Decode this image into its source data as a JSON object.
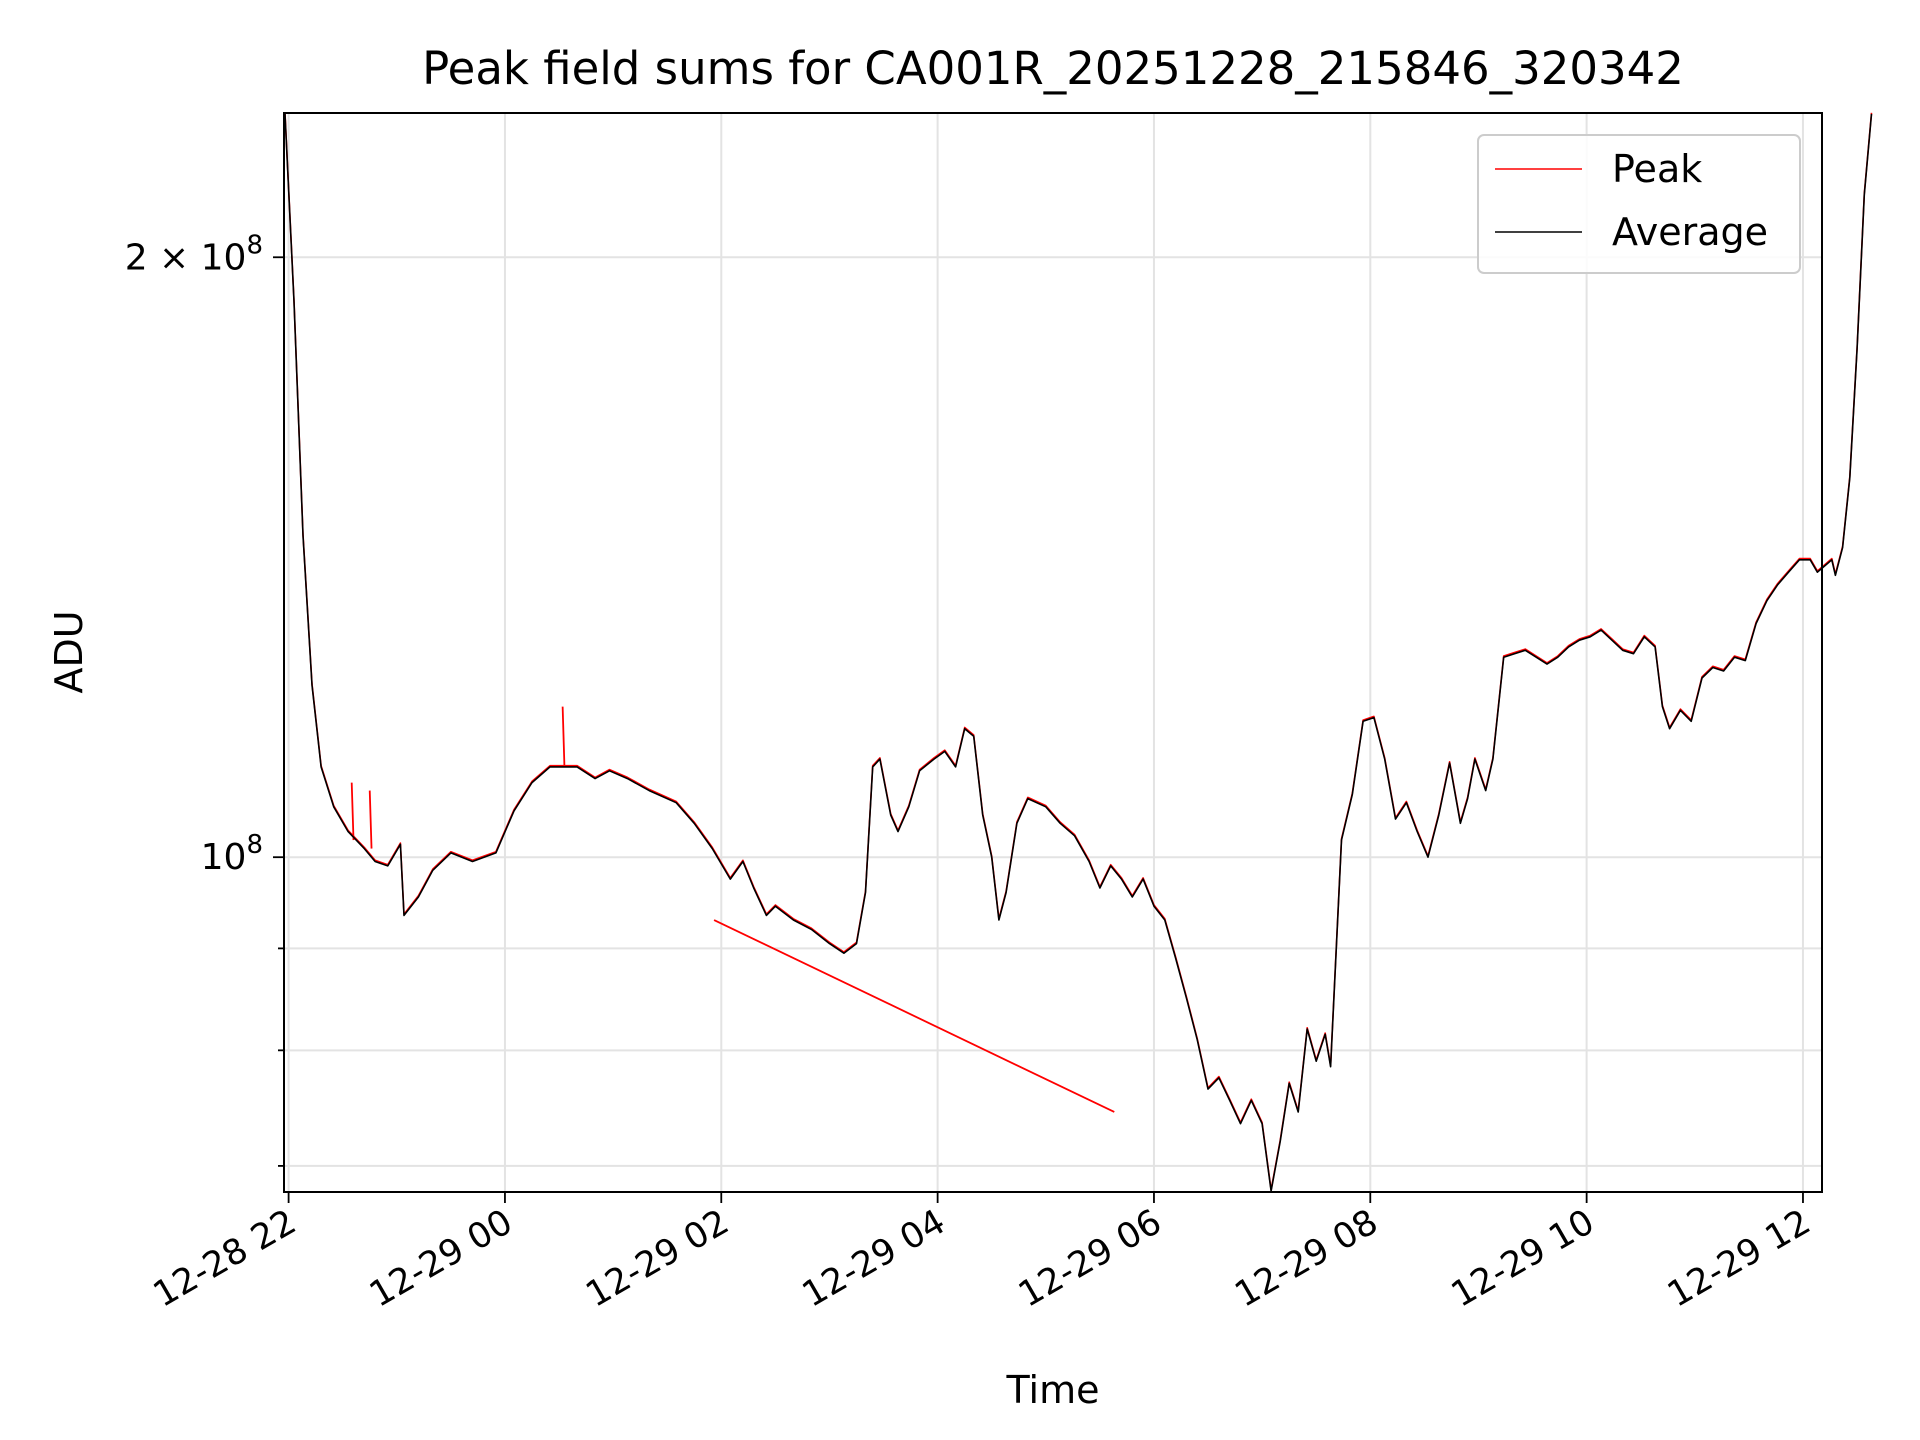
{
  "chart_data": {
    "type": "line",
    "title": "Peak field sums for CA001R_20251228_215846_320342",
    "xlabel": "Time",
    "ylabel": "ADU",
    "yscale": "log",
    "xlim": [
      "2025-12-28T21:58",
      "2025-12-29T12:10"
    ],
    "ylim": [
      68000000,
      236000000
    ],
    "grid": true,
    "legend_position": "top-right",
    "x_ticks": [
      {
        "t": "2025-12-28T22:00",
        "label": "12-28 22"
      },
      {
        "t": "2025-12-29T00:00",
        "label": "12-29 00"
      },
      {
        "t": "2025-12-29T02:00",
        "label": "12-29 02"
      },
      {
        "t": "2025-12-29T04:00",
        "label": "12-29 04"
      },
      {
        "t": "2025-12-29T06:00",
        "label": "12-29 06"
      },
      {
        "t": "2025-12-29T08:00",
        "label": "12-29 08"
      },
      {
        "t": "2025-12-29T10:00",
        "label": "12-29 10"
      },
      {
        "t": "2025-12-29T12:00",
        "label": "12-29 12"
      }
    ],
    "y_major_ticks": [
      {
        "value": 100000000,
        "label_base": "10",
        "label_exp": "8"
      },
      {
        "value": 200000000,
        "label_base": "2 × 10",
        "label_exp": "8"
      }
    ],
    "y_minor_ticks": [
      70000000,
      80000000,
      90000000
    ],
    "series": [
      {
        "name": "Peak",
        "color": "#ff0000",
        "points": [
          [
            "2025-12-28T22:35",
            "109000000"
          ],
          [
            "2025-12-28T22:36",
            "102000000"
          ],
          [
            "2025-12-28T22:45",
            "108000000"
          ],
          [
            "2025-12-28T22:46",
            "101000000"
          ],
          [
            "2025-12-29T00:32",
            "119000000"
          ],
          [
            "2025-12-29T00:33",
            "111000000"
          ],
          [
            "2025-12-29T01:56",
            "93000000"
          ],
          [
            "2025-12-29T05:38",
            "74500000"
          ]
        ]
      },
      {
        "name": "Average",
        "color": "#000000",
        "points": [
          [
            "2025-12-28T21:58",
            236000000
          ],
          [
            "2025-12-28T22:03",
            190000000
          ],
          [
            "2025-12-28T22:08",
            145000000
          ],
          [
            "2025-12-28T22:13",
            122000000
          ],
          [
            "2025-12-28T22:18",
            111000000
          ],
          [
            "2025-12-28T22:25",
            106000000
          ],
          [
            "2025-12-28T22:33",
            103000000
          ],
          [
            "2025-12-28T22:42",
            101000000
          ],
          [
            "2025-12-28T22:48",
            99500000
          ],
          [
            "2025-12-28T22:55",
            99000000
          ],
          [
            "2025-12-28T23:02",
            101500000
          ],
          [
            "2025-12-28T23:04",
            93500000
          ],
          [
            "2025-12-28T23:12",
            95500000
          ],
          [
            "2025-12-28T23:20",
            98500000
          ],
          [
            "2025-12-28T23:30",
            100500000
          ],
          [
            "2025-12-28T23:42",
            99500000
          ],
          [
            "2025-12-28T23:55",
            100500000
          ],
          [
            "2025-12-29T00:05",
            105500000
          ],
          [
            "2025-12-29T00:15",
            109000000
          ],
          [
            "2025-12-29T00:25",
            111000000
          ],
          [
            "2025-12-29T00:40",
            111000000
          ],
          [
            "2025-12-29T00:50",
            109500000
          ],
          [
            "2025-12-29T00:58",
            110500000
          ],
          [
            "2025-12-29T01:08",
            109500000
          ],
          [
            "2025-12-29T01:20",
            108000000
          ],
          [
            "2025-12-29T01:35",
            106500000
          ],
          [
            "2025-12-29T01:45",
            104000000
          ],
          [
            "2025-12-29T01:55",
            101000000
          ],
          [
            "2025-12-29T02:05",
            97500000
          ],
          [
            "2025-12-29T02:12",
            99500000
          ],
          [
            "2025-12-29T02:18",
            96500000
          ],
          [
            "2025-12-29T02:25",
            93500000
          ],
          [
            "2025-12-29T02:30",
            94500000
          ],
          [
            "2025-12-29T02:40",
            93000000
          ],
          [
            "2025-12-29T02:50",
            92000000
          ],
          [
            "2025-12-29T03:00",
            90500000
          ],
          [
            "2025-12-29T03:08",
            89500000
          ],
          [
            "2025-12-29T03:15",
            90500000
          ],
          [
            "2025-12-29T03:20",
            96000000
          ],
          [
            "2025-12-29T03:24",
            111000000
          ],
          [
            "2025-12-29T03:28",
            112000000
          ],
          [
            "2025-12-29T03:34",
            105000000
          ],
          [
            "2025-12-29T03:38",
            103000000
          ],
          [
            "2025-12-29T03:44",
            106000000
          ],
          [
            "2025-12-29T03:50",
            110500000
          ],
          [
            "2025-12-29T03:58",
            112000000
          ],
          [
            "2025-12-29T04:04",
            113000000
          ],
          [
            "2025-12-29T04:10",
            111000000
          ],
          [
            "2025-12-29T04:15",
            116000000
          ],
          [
            "2025-12-29T04:20",
            115000000
          ],
          [
            "2025-12-29T04:25",
            105000000
          ],
          [
            "2025-12-29T04:30",
            100000000
          ],
          [
            "2025-12-29T04:34",
            93000000
          ],
          [
            "2025-12-29T04:38",
            96000000
          ],
          [
            "2025-12-29T04:44",
            104000000
          ],
          [
            "2025-12-29T04:50",
            107000000
          ],
          [
            "2025-12-29T05:00",
            106000000
          ],
          [
            "2025-12-29T05:08",
            104000000
          ],
          [
            "2025-12-29T05:16",
            102500000
          ],
          [
            "2025-12-29T05:24",
            99500000
          ],
          [
            "2025-12-29T05:30",
            96500000
          ],
          [
            "2025-12-29T05:36",
            99000000
          ],
          [
            "2025-12-29T05:42",
            97500000
          ],
          [
            "2025-12-29T05:48",
            95500000
          ],
          [
            "2025-12-29T05:54",
            97500000
          ],
          [
            "2025-12-29T06:00",
            94500000
          ],
          [
            "2025-12-29T06:06",
            93000000
          ],
          [
            "2025-12-29T06:12",
            89000000
          ],
          [
            "2025-12-29T06:18",
            85000000
          ],
          [
            "2025-12-29T06:24",
            81000000
          ],
          [
            "2025-12-29T06:30",
            76500000
          ],
          [
            "2025-12-29T06:36",
            77500000
          ],
          [
            "2025-12-29T06:42",
            75500000
          ],
          [
            "2025-12-29T06:48",
            73500000
          ],
          [
            "2025-12-29T06:54",
            75500000
          ],
          [
            "2025-12-29T07:00",
            73500000
          ],
          [
            "2025-12-29T07:05",
            68000000
          ],
          [
            "2025-12-29T07:10",
            72000000
          ],
          [
            "2025-12-29T07:15",
            77000000
          ],
          [
            "2025-12-29T07:20",
            74500000
          ],
          [
            "2025-12-29T07:25",
            82000000
          ],
          [
            "2025-12-29T07:30",
            79000000
          ],
          [
            "2025-12-29T07:35",
            81500000
          ],
          [
            "2025-12-29T07:38",
            78500000
          ],
          [
            "2025-12-29T07:44",
            102000000
          ],
          [
            "2025-12-29T07:50",
            107500000
          ],
          [
            "2025-12-29T07:56",
            117000000
          ],
          [
            "2025-12-29T08:02",
            117500000
          ],
          [
            "2025-12-29T08:08",
            112000000
          ],
          [
            "2025-12-29T08:14",
            104500000
          ],
          [
            "2025-12-29T08:20",
            106500000
          ],
          [
            "2025-12-29T08:26",
            103000000
          ],
          [
            "2025-12-29T08:32",
            100000000
          ],
          [
            "2025-12-29T08:38",
            105000000
          ],
          [
            "2025-12-29T08:44",
            111500000
          ],
          [
            "2025-12-29T08:50",
            104000000
          ],
          [
            "2025-12-29T08:54",
            107000000
          ],
          [
            "2025-12-29T08:58",
            112000000
          ],
          [
            "2025-12-29T09:04",
            108000000
          ],
          [
            "2025-12-29T09:08",
            112000000
          ],
          [
            "2025-12-29T09:14",
            126000000
          ],
          [
            "2025-12-29T09:20",
            126500000
          ],
          [
            "2025-12-29T09:26",
            127000000
          ],
          [
            "2025-12-29T09:32",
            126000000
          ],
          [
            "2025-12-29T09:38",
            125000000
          ],
          [
            "2025-12-29T09:44",
            126000000
          ],
          [
            "2025-12-29T09:50",
            127500000
          ],
          [
            "2025-12-29T09:56",
            128500000
          ],
          [
            "2025-12-29T10:02",
            129000000
          ],
          [
            "2025-12-29T10:08",
            130000000
          ],
          [
            "2025-12-29T10:14",
            128500000
          ],
          [
            "2025-12-29T10:20",
            127000000
          ],
          [
            "2025-12-29T10:26",
            126500000
          ],
          [
            "2025-12-29T10:32",
            129000000
          ],
          [
            "2025-12-29T10:38",
            127500000
          ],
          [
            "2025-12-29T10:42",
            119000000
          ],
          [
            "2025-12-29T10:46",
            116000000
          ],
          [
            "2025-12-29T10:52",
            118500000
          ],
          [
            "2025-12-29T10:58",
            117000000
          ],
          [
            "2025-12-29T11:04",
            123000000
          ],
          [
            "2025-12-29T11:10",
            124500000
          ],
          [
            "2025-12-29T11:16",
            124000000
          ],
          [
            "2025-12-29T11:22",
            126000000
          ],
          [
            "2025-12-29T11:28",
            125500000
          ],
          [
            "2025-12-29T11:34",
            131000000
          ],
          [
            "2025-12-29T11:40",
            134500000
          ],
          [
            "2025-12-29T11:46",
            137000000
          ],
          [
            "2025-12-29T11:52",
            139000000
          ],
          [
            "2025-12-29T11:58",
            141000000
          ],
          [
            "2025-12-29T12:04",
            141000000
          ],
          [
            "2025-12-29T12:08",
            139000000
          ],
          [
            "2025-12-29T12:12",
            140000000
          ],
          [
            "2025-12-29T12:16",
            141000000
          ],
          [
            "2025-12-29T12:18",
            138500000
          ],
          [
            "2025-12-29T12:22",
            143000000
          ],
          [
            "2025-12-29T12:26",
            155000000
          ],
          [
            "2025-12-29T12:30",
            180000000
          ],
          [
            "2025-12-29T12:34",
            215000000
          ],
          [
            "2025-12-29T12:38",
            236000000
          ]
        ]
      }
    ]
  }
}
